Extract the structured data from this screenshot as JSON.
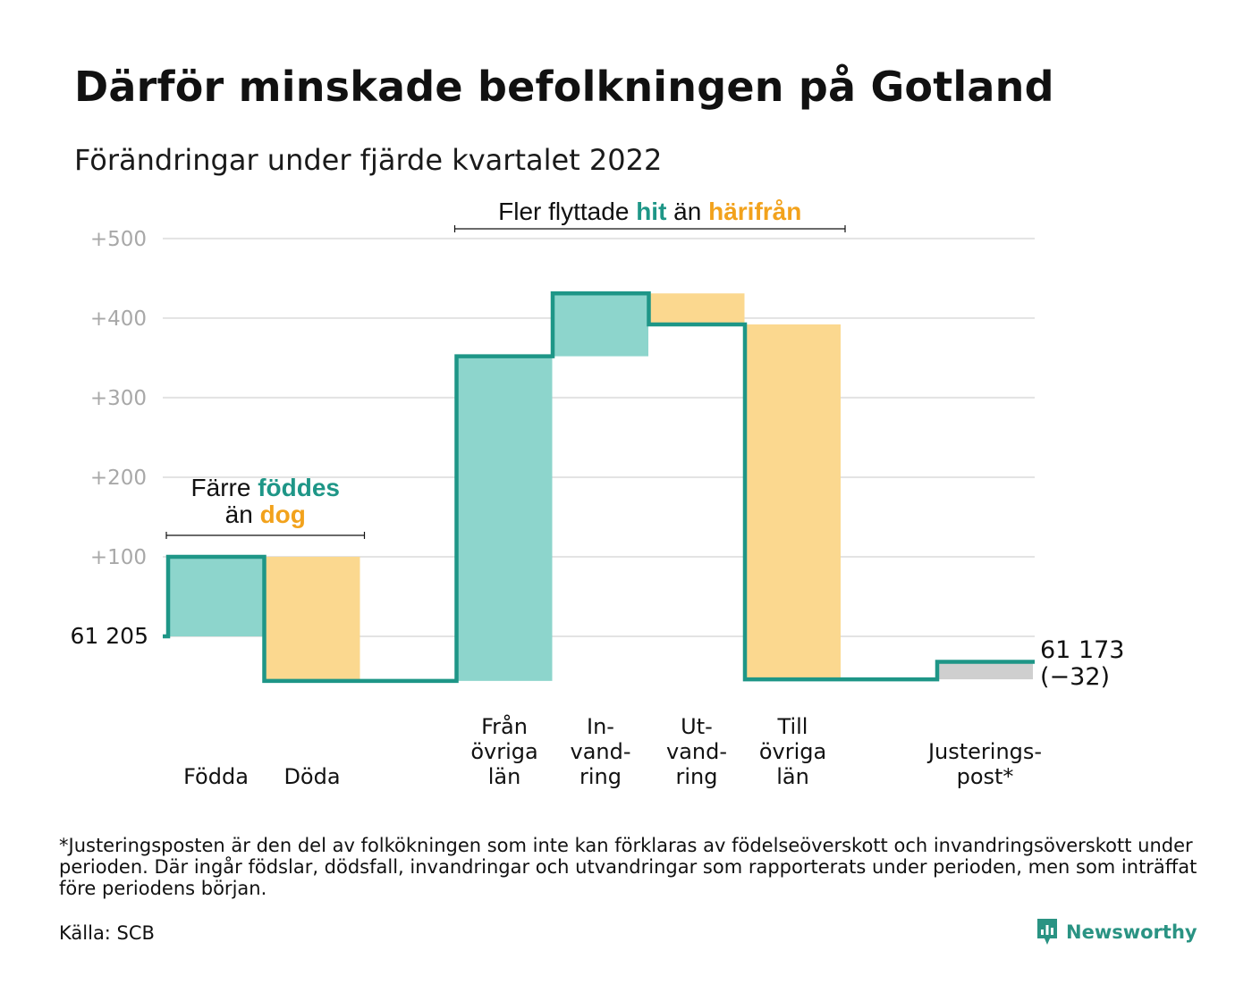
{
  "header": {
    "title": "Därför minskade befolkningen på Gotland",
    "subtitle": "Förändringar under fjärde kvartalet 2022"
  },
  "chart_data": {
    "type": "waterfall",
    "ylim": [
      -55,
      500
    ],
    "yticks": [
      {
        "value": 100,
        "label": "+100"
      },
      {
        "value": 200,
        "label": "+200"
      },
      {
        "value": 300,
        "label": "+300"
      },
      {
        "value": 400,
        "label": "+400"
      },
      {
        "value": 500,
        "label": "+500"
      }
    ],
    "start": {
      "value": 0,
      "label": "61 205"
    },
    "end": {
      "value": -32,
      "label_lines": [
        "61 173",
        "(−32)"
      ]
    },
    "steps": [
      {
        "category_lines": [
          "Födda"
        ],
        "change": 100,
        "kind": "increase"
      },
      {
        "category_lines": [
          "Döda"
        ],
        "change": -156,
        "kind": "decrease"
      },
      {
        "category_lines": [],
        "change": 0,
        "kind": "gap"
      },
      {
        "category_lines": [
          "Från",
          "övriga",
          "län"
        ],
        "change": 408,
        "kind": "increase"
      },
      {
        "category_lines": [
          "In-",
          "vand-",
          "ring"
        ],
        "change": 79,
        "kind": "increase"
      },
      {
        "category_lines": [
          "Ut-",
          "vand-",
          "ring"
        ],
        "change": -39,
        "kind": "decrease"
      },
      {
        "category_lines": [
          "Till",
          "övriga",
          "län"
        ],
        "change": -446,
        "kind": "decrease"
      },
      {
        "category_lines": [],
        "change": 0,
        "kind": "gap"
      },
      {
        "category_lines": [
          "Justerings-",
          "post*"
        ],
        "change": 22,
        "kind": "adjustment"
      }
    ],
    "annotations": [
      {
        "lines": [
          [
            {
              "text": "Färre ",
              "color": "#111111"
            },
            {
              "text": "föddes",
              "color": "#1e9687",
              "bold": true
            }
          ],
          [
            {
              "text": "än ",
              "color": "#111111"
            },
            {
              "text": "dog",
              "color": "#f2a21c",
              "bold": true
            }
          ]
        ],
        "span": [
          0,
          1
        ]
      },
      {
        "lines": [
          [
            {
              "text": "Fler flyttade ",
              "color": "#111111"
            },
            {
              "text": "hit",
              "color": "#1e9687",
              "bold": true
            },
            {
              "text": " än ",
              "color": "#111111"
            },
            {
              "text": "härifrån",
              "color": "#f2a21c",
              "bold": true
            }
          ]
        ],
        "span": [
          3,
          6
        ]
      }
    ],
    "colors": {
      "increase": "#8dd5cc",
      "decrease": "#fbd88f",
      "adjustment": "#cfcfcf",
      "line": "#1e9687",
      "grid": "#e3e3e3",
      "tick_label": "#a8a8a8"
    }
  },
  "footnote": "*Justeringsposten är den del av folkökningen som inte kan förklaras av födelseöverskott och invandringsöverskott under perioden. Där ingår födslar, dödsfall, invandringar och utvandringar som rapporterats under perioden, men som inträffat före periodens början.",
  "source": "Källa: SCB",
  "brand": {
    "name": "Newsworthy",
    "icon": "newsworthy-logo-icon",
    "color": "#2a9383"
  }
}
